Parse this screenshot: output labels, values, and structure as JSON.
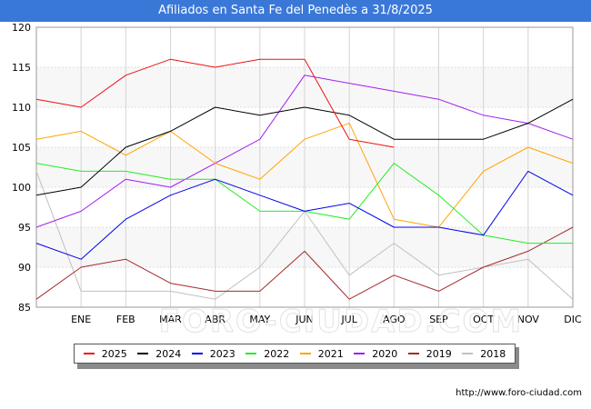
{
  "title": "Afiliados en Santa Fe del Penedès a 31/8/2025",
  "source": "http://www.foro-ciudad.com",
  "watermark": "FORO-CIUDAD.COM",
  "chart_data": {
    "type": "line",
    "categories": [
      "",
      "ENE",
      "FEB",
      "MAR",
      "ABR",
      "MAY",
      "JUN",
      "JUL",
      "AGO",
      "SEP",
      "OCT",
      "NOV",
      "DIC"
    ],
    "ylim": [
      85,
      120
    ],
    "yticks": [
      85,
      90,
      95,
      100,
      105,
      110,
      115,
      120
    ],
    "grid": true,
    "legend_position": "bottom",
    "series": [
      {
        "name": "2025",
        "color": "#ee1111",
        "values": [
          111,
          110,
          114,
          116,
          115,
          116,
          116,
          106,
          105,
          null,
          null,
          null,
          null
        ]
      },
      {
        "name": "2024",
        "color": "#000000",
        "values": [
          99,
          100,
          105,
          107,
          110,
          109,
          110,
          109,
          106,
          106,
          106,
          108,
          111
        ]
      },
      {
        "name": "2023",
        "color": "#0000ee",
        "values": [
          93,
          91,
          96,
          99,
          101,
          99,
          97,
          98,
          95,
          95,
          94,
          102,
          99
        ]
      },
      {
        "name": "2022",
        "color": "#22ee22",
        "values": [
          103,
          102,
          102,
          101,
          101,
          97,
          97,
          96,
          103,
          99,
          94,
          93,
          93
        ]
      },
      {
        "name": "2021",
        "color": "#ffa500",
        "values": [
          106,
          107,
          104,
          107,
          103,
          101,
          106,
          108,
          96,
          95,
          102,
          105,
          103
        ]
      },
      {
        "name": "2020",
        "color": "#a020f0",
        "values": [
          95,
          97,
          101,
          100,
          103,
          106,
          114,
          113,
          112,
          111,
          109,
          108,
          106
        ]
      },
      {
        "name": "2019",
        "color": "#a52a2a",
        "values": [
          86,
          90,
          91,
          88,
          87,
          87,
          92,
          86,
          89,
          87,
          90,
          92,
          95
        ]
      },
      {
        "name": "2018",
        "color": "#c0c0c0",
        "values": [
          102,
          87,
          87,
          87,
          86,
          90,
          97,
          89,
          93,
          89,
          90,
          91,
          86
        ]
      }
    ]
  }
}
